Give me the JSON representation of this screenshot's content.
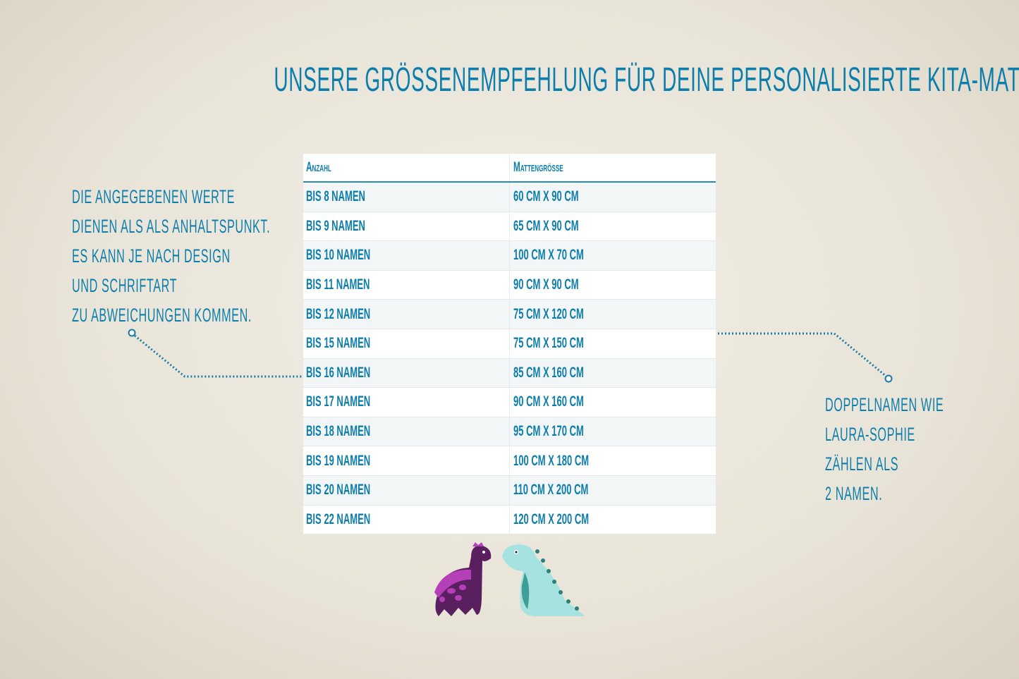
{
  "title": "Unsere Größenempfehlung für deine personalisierte Kita-Matte",
  "left_note": [
    "Die angegebenen Werte",
    "dienen als als Anhaltspunkt.",
    "Es kann je nach Design",
    "und Schriftart",
    "zu Abweichungen kommen."
  ],
  "right_note": [
    "Doppelnamen wie",
    "Laura-Sophie",
    "zählen als",
    "2 Namen."
  ],
  "table": {
    "headers": [
      "Anzahl",
      "Mattengröße"
    ],
    "rows": [
      [
        "bis 8 Namen",
        "60 cm x 90 cm"
      ],
      [
        "bis 9 Namen",
        "65 cm x 90 cm"
      ],
      [
        "bis 10 Namen",
        "100 cm x 70 cm"
      ],
      [
        "bis 11 Namen",
        "90 cm x 90 cm"
      ],
      [
        "bis 12 Namen",
        "75 cm x 120 cm"
      ],
      [
        "bis 15 Namen",
        "75 cm x 150 cm"
      ],
      [
        "bis 16 Namen",
        "85 cm x 160 cm"
      ],
      [
        "bis 17 Namen",
        "90 cm x 160 cm"
      ],
      [
        "bis 18 Namen",
        "95 cm x 170 cm"
      ],
      [
        "bis 19 Namen",
        "100 cm x 180 cm"
      ],
      [
        "bis 20 Namen",
        "110 cm x 200 cm"
      ],
      [
        "bis 22 Namen",
        "120 cm x 200 cm"
      ]
    ]
  },
  "colors": {
    "text": "#0d7eab",
    "purple_dino": "#5a1f5e",
    "teal_dino": "#a6e3e0"
  },
  "icons": [
    "purple-dinosaur-illustration",
    "teal-dinosaur-illustration"
  ]
}
